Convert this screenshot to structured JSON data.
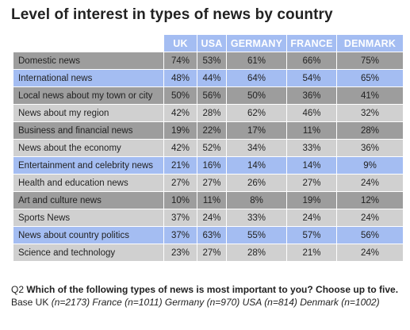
{
  "title": "Level of interest in types of news by country",
  "table": {
    "columns": [
      "UK",
      "USA",
      "GERMANY",
      "FRANCE",
      "DENMARK"
    ],
    "rows": [
      {
        "label": "Domestic news",
        "values": [
          "74%",
          "53%",
          "61%",
          "66%",
          "75%"
        ]
      },
      {
        "label": "International news",
        "values": [
          "48%",
          "44%",
          "64%",
          "54%",
          "65%"
        ]
      },
      {
        "label": "Local news about my town or city",
        "values": [
          "50%",
          "56%",
          "50%",
          "36%",
          "41%"
        ]
      },
      {
        "label": "News about my region",
        "values": [
          "42%",
          "28%",
          "62%",
          "46%",
          "32%"
        ]
      },
      {
        "label": "Business and financial news",
        "values": [
          "19%",
          "22%",
          "17%",
          "11%",
          "28%"
        ]
      },
      {
        "label": "News about the economy",
        "values": [
          "42%",
          "52%",
          "34%",
          "33%",
          "36%"
        ]
      },
      {
        "label": "Entertainment and celebrity news",
        "values": [
          "21%",
          "16%",
          "14%",
          "14%",
          "9%"
        ]
      },
      {
        "label": "Health and education news",
        "values": [
          "27%",
          "27%",
          "26%",
          "27%",
          "24%"
        ]
      },
      {
        "label": "Art and culture news",
        "values": [
          "10%",
          "11%",
          "8%",
          "19%",
          "12%"
        ]
      },
      {
        "label": "Sports News",
        "values": [
          "37%",
          "24%",
          "33%",
          "24%",
          "24%"
        ]
      },
      {
        "label": "News about country politics",
        "values": [
          "37%",
          "63%",
          "55%",
          "57%",
          "56%"
        ]
      },
      {
        "label": "Science and technology",
        "values": [
          "23%",
          "27%",
          "28%",
          "21%",
          "24%"
        ]
      }
    ]
  },
  "footnote": {
    "q_label": "Q2",
    "question": "Which of the following types of news is most important to you? Choose up to five.",
    "base_label": "Base UK",
    "base_uk_n": "(n=2173)",
    "base_rest": "France (n=1011) Germany (n=970) USA (n=814) Denmark (n=1002)"
  },
  "colors": {
    "header_bg": "#a4bdf2",
    "row_gray": "#9d9d9d",
    "row_light": "#d0d0d0",
    "row_blue": "#a4bdf2"
  }
}
